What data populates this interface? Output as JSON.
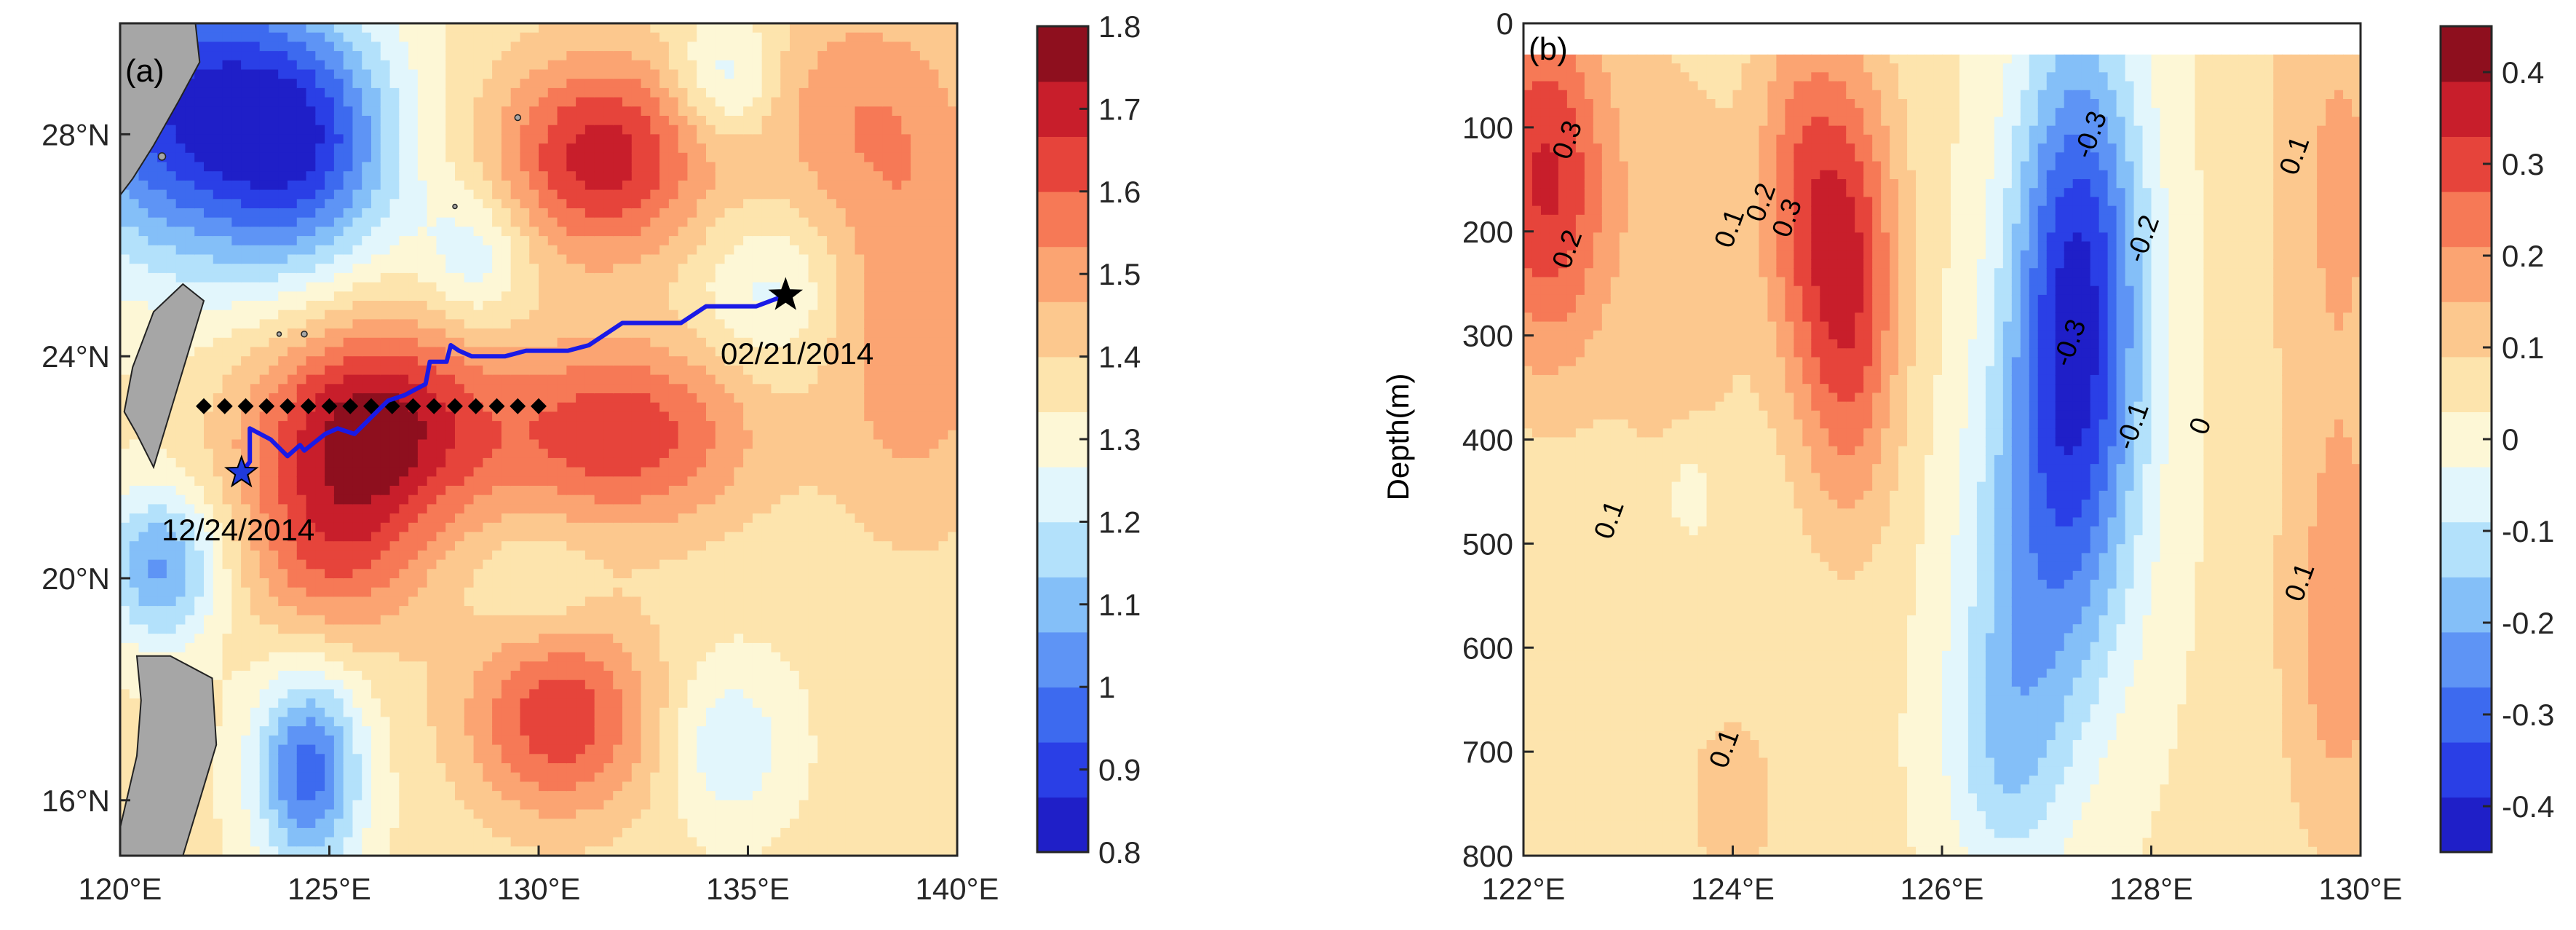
{
  "chart_data": [
    {
      "panel": "a",
      "type": "heatmap",
      "panel_label": "(a)",
      "xlim": [
        120,
        140
      ],
      "ylim": [
        15,
        30
      ],
      "x_ticks": [
        120,
        125,
        130,
        135,
        140
      ],
      "x_tick_labels": [
        "120°E",
        "125°E",
        "130°E",
        "135°E",
        "140°E"
      ],
      "y_ticks": [
        16,
        20,
        24,
        28
      ],
      "y_tick_labels": [
        "16°N",
        "20°N",
        "24°N",
        "28°N"
      ],
      "colorbar": {
        "min": 0.8,
        "max": 1.8,
        "ticks": [
          0.8,
          0.9,
          1,
          1.1,
          1.2,
          1.3,
          1.4,
          1.5,
          1.6,
          1.7,
          1.8
        ],
        "tick_labels": [
          "0.8",
          "0.9",
          "1",
          "1.1",
          "1.2",
          "1.3",
          "1.4",
          "1.5",
          "1.6",
          "1.7",
          "1.8"
        ]
      },
      "field_centers": [
        {
          "lon": 126,
          "lat": 22.7,
          "amp": 0.42,
          "sx": 2.0,
          "sy": 1.4
        },
        {
          "lon": 132,
          "lat": 22.6,
          "amp": 0.3,
          "sx": 2.2,
          "sy": 1.2
        },
        {
          "lon": 131.5,
          "lat": 27.6,
          "amp": 0.35,
          "sx": 1.8,
          "sy": 1.3
        },
        {
          "lon": 130.5,
          "lat": 17.5,
          "amp": 0.3,
          "sx": 1.6,
          "sy": 1.3
        },
        {
          "lon": 125,
          "lat": 20.3,
          "amp": 0.2,
          "sx": 1.5,
          "sy": 1.2
        },
        {
          "lon": 139,
          "lat": 24.5,
          "amp": 0.18,
          "sx": 1.5,
          "sy": 2.5
        },
        {
          "lon": 137.5,
          "lat": 28.5,
          "amp": 0.15,
          "sx": 2.0,
          "sy": 1.5
        },
        {
          "lon": 121.5,
          "lat": 28.5,
          "amp": -0.45,
          "sx": 2.2,
          "sy": 2.0
        },
        {
          "lon": 124.5,
          "lat": 27.8,
          "amp": -0.35,
          "sx": 1.6,
          "sy": 1.6
        },
        {
          "lon": 124.5,
          "lat": 16.5,
          "amp": -0.38,
          "sx": 0.9,
          "sy": 1.3
        },
        {
          "lon": 121,
          "lat": 20.2,
          "amp": -0.3,
          "sx": 1.0,
          "sy": 1.0
        },
        {
          "lon": 135.5,
          "lat": 25.2,
          "amp": -0.12,
          "sx": 1.2,
          "sy": 1.0
        },
        {
          "lon": 134.5,
          "lat": 29.0,
          "amp": -0.18,
          "sx": 0.9,
          "sy": 0.8
        },
        {
          "lon": 128.5,
          "lat": 25.8,
          "amp": -0.15,
          "sx": 0.9,
          "sy": 0.9
        },
        {
          "lon": 134.5,
          "lat": 17.0,
          "amp": -0.15,
          "sx": 1.0,
          "sy": 1.0
        },
        {
          "lon": 130,
          "lat": 19.8,
          "amp": -0.08,
          "sx": 1.0,
          "sy": 0.8
        }
      ],
      "field_base": 1.35,
      "track": {
        "lon": [
          122.9,
          123.1,
          123.1,
          123.6,
          124.0,
          124.3,
          124.4,
          124.9,
          125.2,
          125.6,
          126.0,
          126.4,
          126.8,
          127.3,
          127.4,
          127.6,
          127.8,
          127.9,
          128.1,
          128.4,
          128.8,
          129.2,
          129.7,
          130.2,
          130.7,
          131.2,
          131.6,
          132.0,
          132.3,
          132.8,
          133.4,
          134.0,
          134.6,
          135.2,
          135.9
        ],
        "lat": [
          21.9,
          22.1,
          22.7,
          22.5,
          22.2,
          22.4,
          22.3,
          22.6,
          22.7,
          22.6,
          22.9,
          23.2,
          23.3,
          23.5,
          23.9,
          23.9,
          23.9,
          24.2,
          24.1,
          24.0,
          24.0,
          24.0,
          24.1,
          24.1,
          24.1,
          24.2,
          24.4,
          24.6,
          24.6,
          24.6,
          24.6,
          24.9,
          24.9,
          24.9,
          25.1
        ]
      },
      "section_lon": [
        122,
        122.5,
        123,
        123.5,
        124,
        124.5,
        125,
        125.5,
        126,
        126.5,
        127,
        127.5,
        128,
        128.5,
        129,
        129.5,
        130
      ],
      "section_lat": 23.1,
      "start_marker": {
        "lon": 122.9,
        "lat": 21.9,
        "label": "12/24/2014",
        "color": "#1f3adb"
      },
      "end_marker": {
        "lon": 135.9,
        "lat": 25.1,
        "label": "02/21/2014",
        "color": "#000000"
      }
    },
    {
      "panel": "b",
      "type": "heatmap",
      "panel_label": "(b)",
      "xlim": [
        122,
        130
      ],
      "ylim": [
        0,
        800
      ],
      "y_reversed": true,
      "data_top_depth": 30,
      "ylabel": "Depth(m)",
      "x_ticks": [
        122,
        124,
        126,
        128,
        130
      ],
      "x_tick_labels": [
        "122°E",
        "124°E",
        "126°E",
        "128°E",
        "130°E"
      ],
      "y_ticks": [
        0,
        100,
        200,
        300,
        400,
        500,
        600,
        700,
        800
      ],
      "y_tick_labels": [
        "0",
        "100",
        "200",
        "300",
        "400",
        "500",
        "600",
        "700",
        "800"
      ],
      "colorbar": {
        "min": -0.45,
        "max": 0.45,
        "ticks": [
          -0.4,
          -0.3,
          -0.2,
          -0.1,
          0,
          0.1,
          0.2,
          0.3,
          0.4
        ],
        "tick_labels": [
          "-0.4",
          "-0.3",
          "-0.2",
          "-0.1",
          "0",
          "0.1",
          "0.2",
          "0.3",
          "0.4"
        ]
      },
      "field_centers": [
        {
          "lon": 122.2,
          "lat": 150,
          "amp": 0.3,
          "sx": 0.45,
          "sy": 130
        },
        {
          "lon": 125.1,
          "lat": 250,
          "amp": 0.3,
          "sx": 0.35,
          "sy": 150
        },
        {
          "lon": 124.6,
          "lat": 150,
          "amp": 0.15,
          "sx": 0.3,
          "sy": 120
        },
        {
          "lon": 123.5,
          "lat": 250,
          "amp": 0.08,
          "sx": 0.5,
          "sy": 200
        },
        {
          "lon": 129.8,
          "lat": 150,
          "amp": 0.12,
          "sx": 0.5,
          "sy": 200
        },
        {
          "lon": 129.8,
          "lat": 600,
          "amp": 0.14,
          "sx": 0.4,
          "sy": 150
        },
        {
          "lon": 127.3,
          "lat": 250,
          "amp": -0.42,
          "sx": 0.45,
          "sy": 180
        },
        {
          "lon": 127.0,
          "lat": 500,
          "amp": -0.2,
          "sx": 0.55,
          "sy": 150
        },
        {
          "lon": 126.6,
          "lat": 700,
          "amp": -0.15,
          "sx": 0.4,
          "sy": 100
        },
        {
          "lon": 123.6,
          "lat": 450,
          "amp": -0.08,
          "sx": 0.2,
          "sy": 40
        },
        {
          "lon": 124.0,
          "lat": 750,
          "amp": 0.1,
          "sx": 0.3,
          "sy": 60
        }
      ],
      "field_base": 0.04,
      "contour_labels": [
        {
          "lon": 122.5,
          "depth": 115,
          "text": "0.3"
        },
        {
          "lon": 122.5,
          "depth": 220,
          "text": "0.2"
        },
        {
          "lon": 124.05,
          "depth": 200,
          "text": "0.1"
        },
        {
          "lon": 124.35,
          "depth": 175,
          "text": "0.2"
        },
        {
          "lon": 124.6,
          "depth": 190,
          "text": "0.3"
        },
        {
          "lon": 127.5,
          "depth": 110,
          "text": "-0.3"
        },
        {
          "lon": 127.3,
          "depth": 310,
          "text": "-0.3"
        },
        {
          "lon": 128.0,
          "depth": 210,
          "text": "-0.2"
        },
        {
          "lon": 127.9,
          "depth": 390,
          "text": "-0.1"
        },
        {
          "lon": 128.55,
          "depth": 390,
          "text": "0"
        },
        {
          "lon": 129.45,
          "depth": 130,
          "text": "0.1"
        },
        {
          "lon": 129.5,
          "depth": 540,
          "text": "0.1"
        },
        {
          "lon": 122.9,
          "depth": 480,
          "text": "0.1"
        },
        {
          "lon": 124.0,
          "depth": 700,
          "text": "0.1"
        }
      ]
    }
  ]
}
